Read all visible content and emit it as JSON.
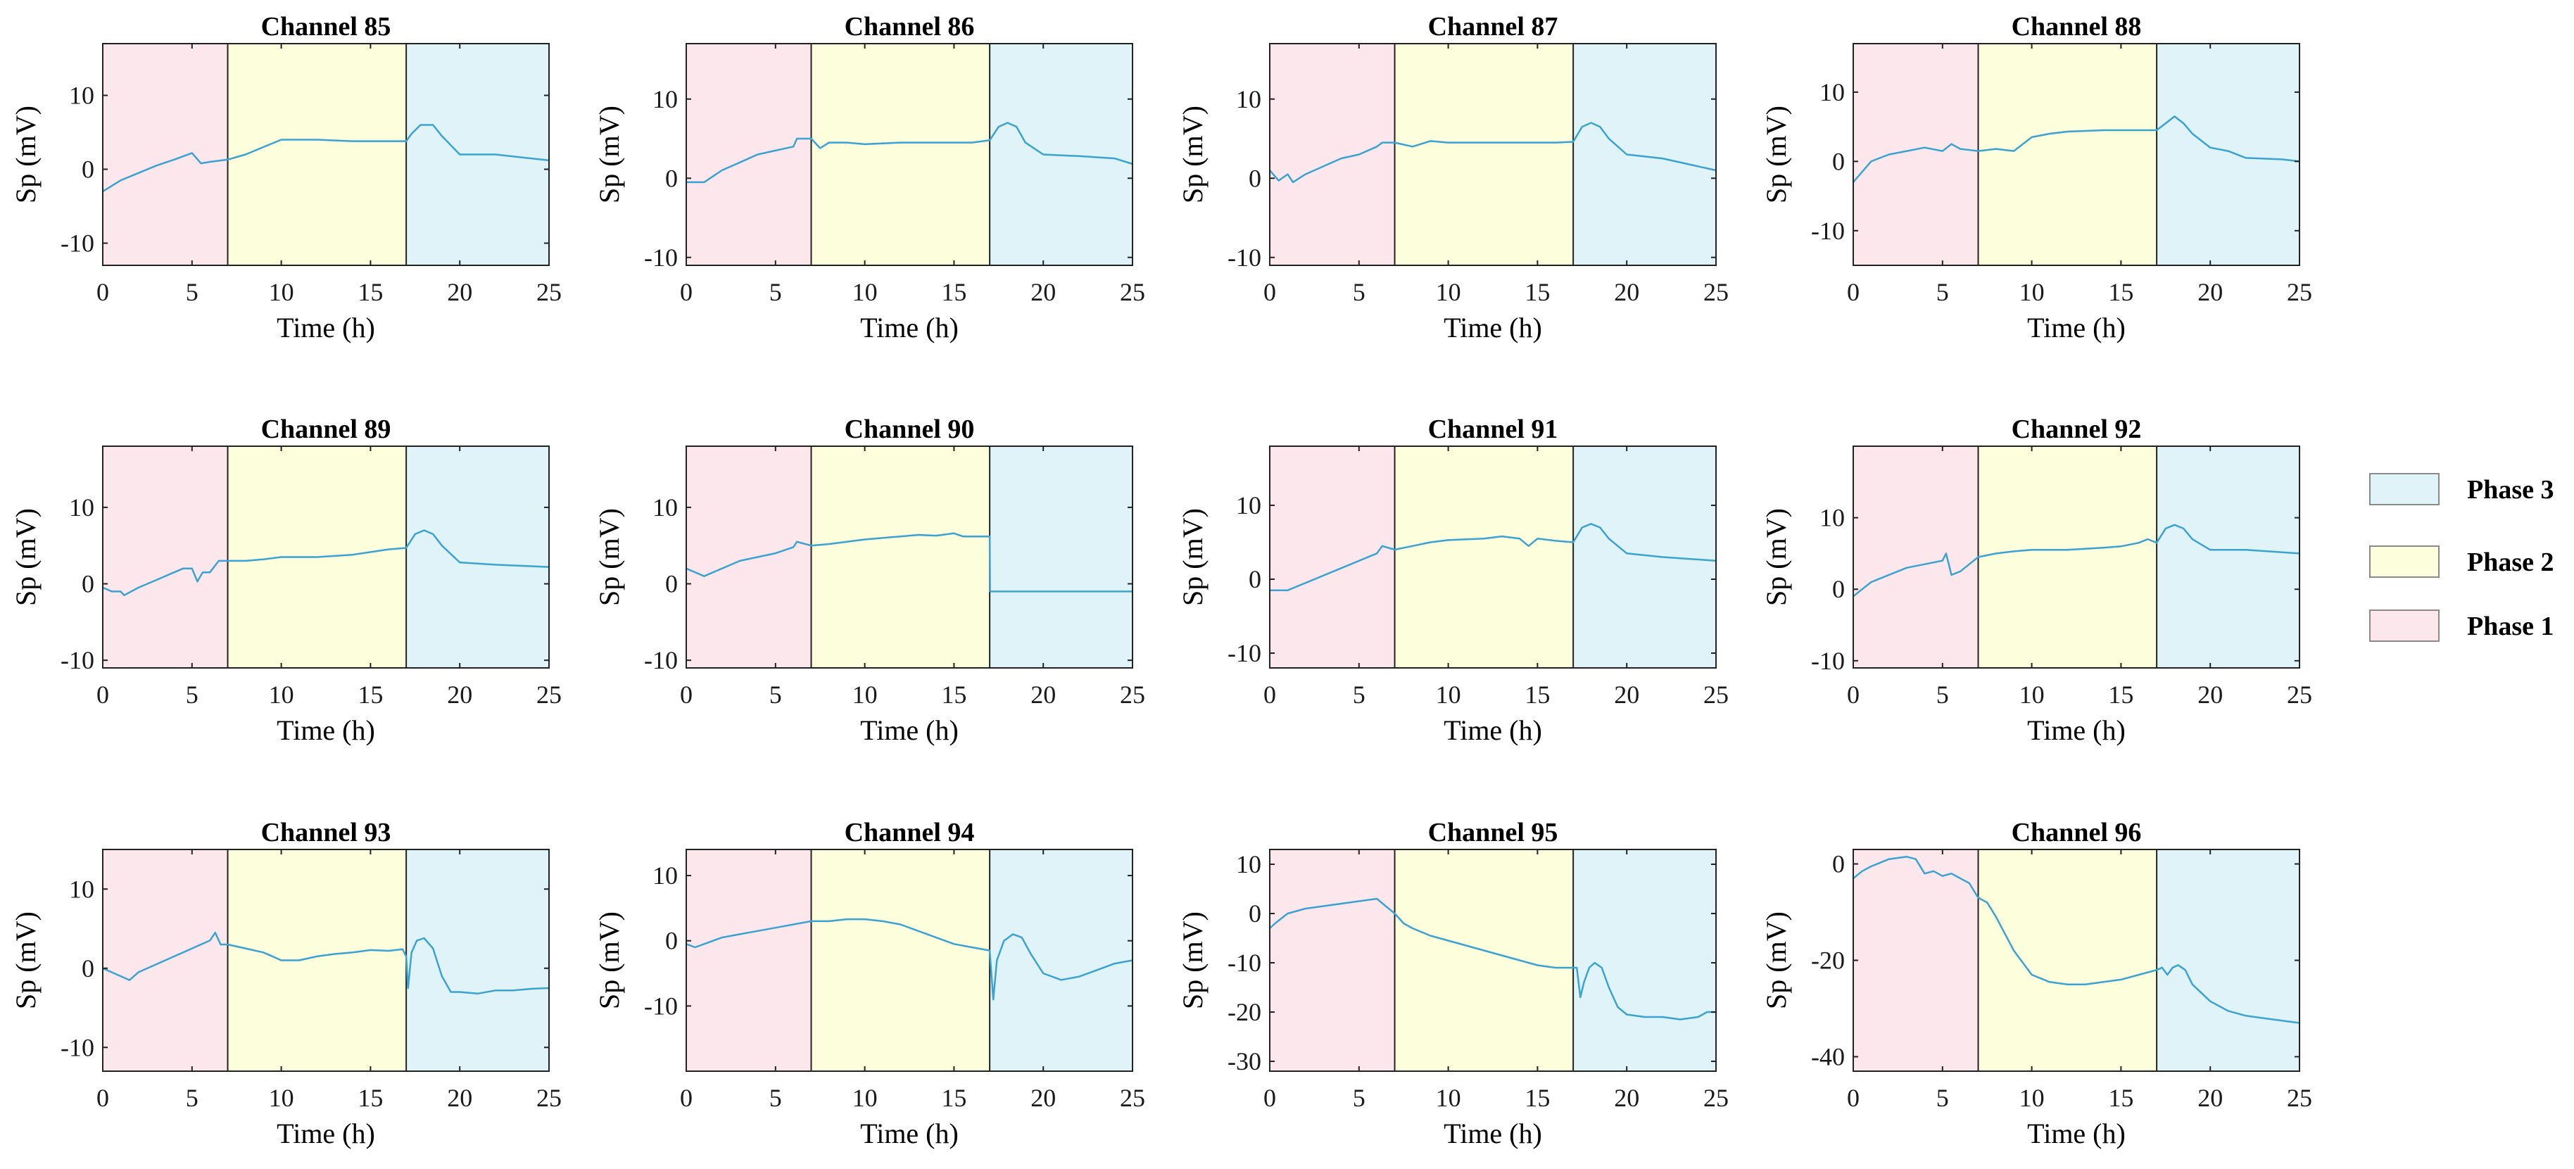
{
  "phases": [
    {
      "name": "Phase 1",
      "start": 0,
      "end": 7,
      "color": "#fce7ec"
    },
    {
      "name": "Phase 2",
      "start": 7,
      "end": 17,
      "color": "#fdfedb"
    },
    {
      "name": "Phase 3",
      "start": 17,
      "end": 25,
      "color": "#e0f3f8"
    }
  ],
  "legend": [
    {
      "label": "Phase 3",
      "color": "#e0f3f8"
    },
    {
      "label": "Phase 2",
      "color": "#fdfedb"
    },
    {
      "label": "Phase 1",
      "color": "#fce7ec"
    }
  ],
  "line_color": "#3aa3d3",
  "chart_data": [
    {
      "type": "line",
      "title": "Channel 85",
      "xlabel": "Time (h)",
      "ylabel": "Sp (mV)",
      "xlim": [
        0,
        25
      ],
      "ylim": [
        -13,
        17
      ],
      "xticks": [
        0,
        5,
        10,
        15,
        20,
        25
      ],
      "yticks": [
        -10,
        0,
        10
      ],
      "x": [
        0,
        1,
        2,
        3,
        4,
        5,
        5.5,
        6,
        7,
        8,
        9,
        10,
        12,
        14,
        16,
        17,
        17.3,
        17.8,
        18.5,
        19,
        20,
        22,
        25
      ],
      "y": [
        -3,
        -1.5,
        -0.5,
        0.5,
        1.3,
        2.2,
        0.8,
        1,
        1.3,
        2,
        3,
        4,
        4,
        3.8,
        3.8,
        3.8,
        4.8,
        6,
        6,
        4.5,
        2,
        2,
        1.2
      ]
    },
    {
      "type": "line",
      "title": "Channel 86",
      "xlabel": "Time (h)",
      "ylabel": "Sp (mV)",
      "xlim": [
        0,
        25
      ],
      "ylim": [
        -11,
        17
      ],
      "xticks": [
        0,
        5,
        10,
        15,
        20,
        25
      ],
      "yticks": [
        -10,
        0,
        10
      ],
      "x": [
        0,
        1,
        2,
        3,
        4,
        5,
        6,
        6.2,
        7,
        7.5,
        8,
        9,
        10,
        12,
        14,
        16,
        17,
        17.5,
        18,
        18.5,
        19,
        20,
        22,
        24,
        25
      ],
      "y": [
        -0.5,
        -0.5,
        1,
        2,
        3,
        3.5,
        4,
        5,
        5,
        3.8,
        4.5,
        4.5,
        4.3,
        4.5,
        4.5,
        4.5,
        4.8,
        6.5,
        7,
        6.5,
        4.5,
        3,
        2.8,
        2.5,
        1.8
      ]
    },
    {
      "type": "line",
      "title": "Channel 87",
      "xlabel": "Time (h)",
      "ylabel": "Sp (mV)",
      "xlim": [
        0,
        25
      ],
      "ylim": [
        -11,
        17
      ],
      "xticks": [
        0,
        5,
        10,
        15,
        20,
        25
      ],
      "yticks": [
        -10,
        0,
        10
      ],
      "x": [
        0,
        0.5,
        1,
        1.3,
        2,
        3,
        4,
        5,
        6,
        6.3,
        7,
        8,
        9,
        10,
        12,
        14,
        16,
        17,
        17.5,
        18,
        18.5,
        19,
        20,
        22,
        24,
        25
      ],
      "y": [
        1,
        -0.3,
        0.5,
        -0.5,
        0.5,
        1.5,
        2.5,
        3,
        4,
        4.5,
        4.5,
        4,
        4.7,
        4.5,
        4.5,
        4.5,
        4.5,
        4.6,
        6.5,
        7,
        6.5,
        5,
        3,
        2.5,
        1.5,
        1
      ]
    },
    {
      "type": "line",
      "title": "Channel 88",
      "xlabel": "Time (h)",
      "ylabel": "Sp (mV)",
      "xlim": [
        0,
        25
      ],
      "ylim": [
        -15,
        17
      ],
      "xticks": [
        0,
        5,
        10,
        15,
        20,
        25
      ],
      "yticks": [
        -10,
        0,
        10
      ],
      "x": [
        0,
        1,
        2,
        3,
        4,
        5,
        5.5,
        6,
        7,
        8,
        9,
        10,
        11,
        12,
        14,
        16,
        17,
        17.5,
        18,
        18.5,
        19,
        20,
        21,
        22,
        24,
        25
      ],
      "y": [
        -3,
        0,
        1,
        1.5,
        2,
        1.5,
        2.5,
        1.8,
        1.5,
        1.8,
        1.5,
        3.5,
        4,
        4.3,
        4.5,
        4.5,
        4.5,
        5.5,
        6.5,
        5.5,
        4,
        2,
        1.5,
        0.5,
        0.3,
        0
      ]
    },
    {
      "type": "line",
      "title": "Channel 89",
      "xlabel": "Time (h)",
      "ylabel": "Sp (mV)",
      "xlim": [
        0,
        25
      ],
      "ylim": [
        -11,
        18
      ],
      "xticks": [
        0,
        5,
        10,
        15,
        20,
        25
      ],
      "yticks": [
        -10,
        0,
        10
      ],
      "x": [
        0,
        0.5,
        1,
        1.2,
        2,
        3,
        4,
        4.5,
        5,
        5.3,
        5.6,
        6,
        6.5,
        7,
        8,
        9,
        10,
        12,
        14,
        16,
        17,
        17.5,
        18,
        18.5,
        19,
        20,
        22,
        25
      ],
      "y": [
        -0.5,
        -1,
        -1,
        -1.5,
        -0.5,
        0.5,
        1.5,
        2,
        2,
        0.3,
        1.5,
        1.5,
        3,
        3,
        3,
        3.2,
        3.5,
        3.5,
        3.8,
        4.5,
        4.7,
        6.5,
        7,
        6.5,
        5,
        2.8,
        2.5,
        2.2
      ]
    },
    {
      "type": "line",
      "title": "Channel 90",
      "xlabel": "Time (h)",
      "ylabel": "Sp (mV)",
      "xlim": [
        0,
        25
      ],
      "ylim": [
        -11,
        18
      ],
      "xticks": [
        0,
        5,
        10,
        15,
        20,
        25
      ],
      "yticks": [
        -10,
        0,
        10
      ],
      "x": [
        0,
        0.5,
        1,
        1.5,
        2,
        3,
        4,
        5,
        6,
        6.2,
        7,
        8,
        9,
        10,
        12,
        13,
        14,
        15,
        15.5,
        16,
        17,
        17.02,
        18,
        20,
        25
      ],
      "y": [
        2,
        1.5,
        1,
        1.5,
        2,
        3,
        3.5,
        4,
        4.8,
        5.5,
        5,
        5.2,
        5.5,
        5.8,
        6.2,
        6.4,
        6.3,
        6.6,
        6.2,
        6.2,
        6.2,
        -1,
        -1,
        -1,
        -1
      ]
    },
    {
      "type": "line",
      "title": "Channel 91",
      "xlabel": "Time (h)",
      "ylabel": "Sp (mV)",
      "xlim": [
        0,
        25
      ],
      "ylim": [
        -12,
        18
      ],
      "xticks": [
        0,
        5,
        10,
        15,
        20,
        25
      ],
      "yticks": [
        -10,
        0,
        10
      ],
      "x": [
        0,
        1,
        1.5,
        2,
        3,
        4,
        5,
        6,
        6.3,
        7,
        8,
        9,
        10,
        12,
        13,
        14,
        14.5,
        15,
        16,
        17,
        17.5,
        18,
        18.5,
        19,
        20,
        22,
        25
      ],
      "y": [
        -1.5,
        -1.5,
        -1,
        -0.5,
        0.5,
        1.5,
        2.5,
        3.5,
        4.5,
        4,
        4.5,
        5,
        5.3,
        5.5,
        5.8,
        5.5,
        4.5,
        5.5,
        5.2,
        5,
        7,
        7.5,
        7,
        5.5,
        3.5,
        3,
        2.5
      ]
    },
    {
      "type": "line",
      "title": "Channel 92",
      "xlabel": "Time (h)",
      "ylabel": "Sp (mV)",
      "xlim": [
        0,
        25
      ],
      "ylim": [
        -11,
        20
      ],
      "xticks": [
        0,
        5,
        10,
        15,
        20,
        25
      ],
      "yticks": [
        -10,
        0,
        10
      ],
      "x": [
        0,
        0.5,
        1,
        2,
        3,
        4,
        5,
        5.2,
        5.5,
        6,
        6.5,
        7,
        8,
        9,
        10,
        12,
        14,
        15,
        16,
        16.5,
        17,
        17.5,
        18,
        18.5,
        19,
        20,
        22,
        25
      ],
      "y": [
        -1,
        0,
        1,
        2,
        3,
        3.5,
        4,
        5,
        2,
        2.5,
        3.5,
        4.5,
        5,
        5.3,
        5.5,
        5.5,
        5.8,
        6,
        6.5,
        7,
        6.5,
        8.5,
        9,
        8.5,
        7,
        5.5,
        5.5,
        5
      ]
    },
    {
      "type": "line",
      "title": "Channel 93",
      "xlabel": "Time (h)",
      "ylabel": "Sp (mV)",
      "xlim": [
        0,
        25
      ],
      "ylim": [
        -13,
        15
      ],
      "xticks": [
        0,
        5,
        10,
        15,
        20,
        25
      ],
      "yticks": [
        -10,
        0,
        10
      ],
      "x": [
        0,
        0.5,
        1,
        1.5,
        2,
        3,
        4,
        5,
        6,
        6.3,
        6.6,
        7,
        8,
        9,
        10,
        11,
        12,
        13,
        14,
        15,
        16,
        16.8,
        17,
        17.1,
        17.3,
        17.6,
        18,
        18.5,
        19,
        19.5,
        20,
        21,
        22,
        23,
        24,
        25
      ],
      "y": [
        0,
        -0.5,
        -1,
        -1.5,
        -0.5,
        0.5,
        1.5,
        2.5,
        3.5,
        4.5,
        3,
        3,
        2.5,
        2,
        1,
        1,
        1.5,
        1.8,
        2,
        2.3,
        2.2,
        2.4,
        1.5,
        -2.5,
        2,
        3.5,
        3.8,
        2.5,
        -1,
        -3,
        -3,
        -3.2,
        -2.8,
        -2.8,
        -2.6,
        -2.5
      ]
    },
    {
      "type": "line",
      "title": "Channel 94",
      "xlabel": "Time (h)",
      "ylabel": "Sp (mV)",
      "xlim": [
        0,
        25
      ],
      "ylim": [
        -20,
        14
      ],
      "xticks": [
        0,
        5,
        10,
        15,
        20,
        25
      ],
      "yticks": [
        -10,
        0,
        10
      ],
      "x": [
        0,
        0.5,
        1,
        2,
        3,
        4,
        5,
        6,
        7,
        8,
        9,
        10,
        11,
        12,
        13,
        14,
        15,
        16,
        17,
        17.2,
        17.4,
        17.8,
        18.3,
        18.8,
        19.3,
        20,
        21,
        22,
        23,
        24,
        25
      ],
      "y": [
        -0.5,
        -1,
        -0.5,
        0.5,
        1,
        1.5,
        2,
        2.5,
        3,
        3,
        3.3,
        3.3,
        3,
        2.5,
        1.5,
        0.5,
        -0.5,
        -1,
        -1.5,
        -9,
        -3,
        0,
        1,
        0.5,
        -2,
        -5,
        -6,
        -5.5,
        -4.5,
        -3.5,
        -3
      ]
    },
    {
      "type": "line",
      "title": "Channel 95",
      "xlabel": "Time (h)",
      "ylabel": "Sp (mV)",
      "xlim": [
        0,
        25
      ],
      "ylim": [
        -32,
        13
      ],
      "xticks": [
        0,
        5,
        10,
        15,
        20,
        25
      ],
      "yticks": [
        -30,
        -20,
        -10,
        0,
        10
      ],
      "x": [
        0,
        0.3,
        1,
        2,
        3,
        4,
        5,
        6,
        6.5,
        7,
        7.5,
        8,
        9,
        10,
        11,
        12,
        13,
        14,
        15,
        16,
        17,
        17.2,
        17.4,
        17.6,
        17.9,
        18.2,
        18.6,
        19,
        19.5,
        20,
        21,
        22,
        23,
        24,
        24.5,
        25
      ],
      "y": [
        -3,
        -2,
        0,
        1,
        1.5,
        2,
        2.5,
        3,
        1.5,
        0,
        -2,
        -3,
        -4.5,
        -5.5,
        -6.5,
        -7.5,
        -8.5,
        -9.5,
        -10.5,
        -11,
        -11,
        -11,
        -17,
        -14,
        -11,
        -10,
        -11,
        -15,
        -19,
        -20.5,
        -21,
        -21,
        -21.5,
        -21,
        -20,
        -20
      ]
    },
    {
      "type": "line",
      "title": "Channel 96",
      "xlabel": "Time (h)",
      "ylabel": "Sp (mV)",
      "xlim": [
        0,
        25
      ],
      "ylim": [
        -43,
        3
      ],
      "xticks": [
        0,
        5,
        10,
        15,
        20,
        25
      ],
      "yticks": [
        -40,
        -20,
        0
      ],
      "x": [
        0,
        0.5,
        1,
        2,
        3,
        3.5,
        4,
        4.5,
        5,
        5.5,
        6,
        6.5,
        7,
        7.5,
        8,
        9,
        10,
        11,
        12,
        13,
        14,
        15,
        16,
        17,
        17.3,
        17.6,
        17.9,
        18.2,
        18.6,
        19,
        20,
        21,
        22,
        23,
        24,
        25
      ],
      "y": [
        -3,
        -1.5,
        -0.5,
        1,
        1.5,
        1,
        -2,
        -1.5,
        -2.5,
        -2,
        -3,
        -4,
        -7,
        -8,
        -11,
        -18,
        -23,
        -24.5,
        -25,
        -25,
        -24.5,
        -24,
        -23,
        -22,
        -21.5,
        -23,
        -21.5,
        -21,
        -22,
        -25,
        -28.5,
        -30.5,
        -31.5,
        -32,
        -32.5,
        -33
      ]
    }
  ]
}
